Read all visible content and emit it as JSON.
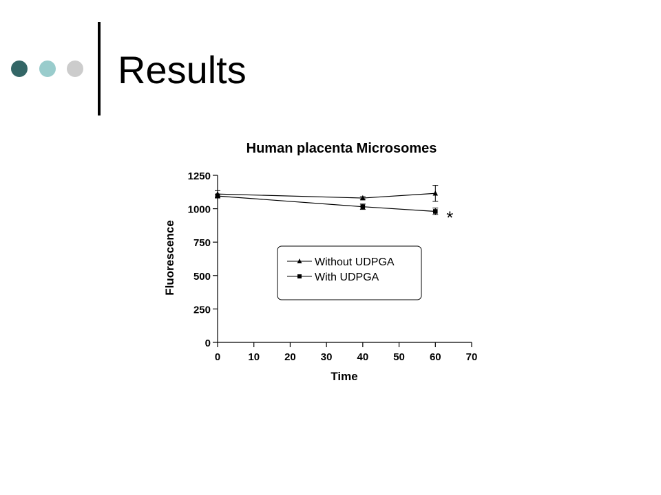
{
  "slide": {
    "title": "Results"
  },
  "colors": {
    "dot_1": "#336666",
    "dot_2": "#99CCCC",
    "dot_3": "#CCCCCC",
    "ink": "#000000"
  },
  "chart_data": {
    "type": "line",
    "title": "Human placenta Microsomes",
    "xlabel": "Time",
    "ylabel": "Fluorescence",
    "xlim": [
      0,
      70
    ],
    "ylim": [
      0,
      1250
    ],
    "xticks": [
      0,
      10,
      20,
      30,
      40,
      50,
      60,
      70
    ],
    "yticks": [
      0,
      250,
      500,
      750,
      1000,
      1250
    ],
    "grid": false,
    "legend_position": "center",
    "series": [
      {
        "name": "Without UDPGA",
        "marker": "triangle",
        "x": [
          0,
          40,
          60
        ],
        "y": [
          1110,
          1080,
          1115
        ],
        "error": [
          25,
          10,
          60
        ]
      },
      {
        "name": "With UDPGA",
        "marker": "square",
        "x": [
          0,
          40,
          60
        ],
        "y": [
          1095,
          1015,
          980
        ],
        "error": [
          15,
          20,
          25
        ]
      }
    ],
    "annotations": [
      {
        "text": "*",
        "x": 64,
        "y": 950
      }
    ]
  }
}
